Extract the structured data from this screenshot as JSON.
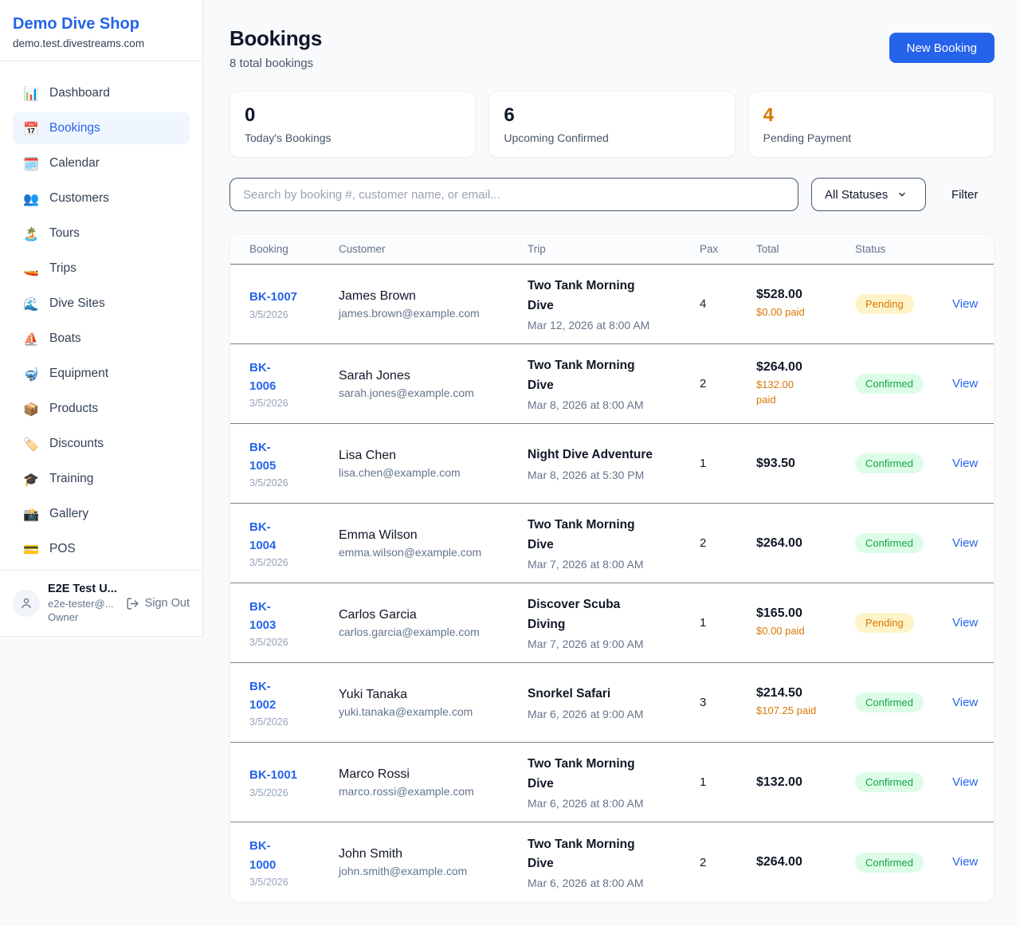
{
  "colors": {
    "accent_blue": "#2563eb",
    "orange": "#d97706",
    "pending_bg": "#fef3c7",
    "pending_text": "#d97706",
    "confirmed_bg": "#dcfce7",
    "confirmed_text": "#16a34a"
  },
  "sidebar": {
    "brand_name": "Demo Dive Shop",
    "brand_domain": "demo.test.divestreams.com",
    "items": [
      {
        "icon": "📊",
        "icon_name": "bar-chart-icon",
        "label": "Dashboard",
        "active": false
      },
      {
        "icon": "📅",
        "icon_name": "calendar-icon",
        "label": "Bookings",
        "active": true
      },
      {
        "icon": "🗓️",
        "icon_name": "spiral-calendar-icon",
        "label": "Calendar",
        "active": false
      },
      {
        "icon": "👥",
        "icon_name": "people-icon",
        "label": "Customers",
        "active": false
      },
      {
        "icon": "🏝️",
        "icon_name": "island-icon",
        "label": "Tours",
        "active": false
      },
      {
        "icon": "🚤",
        "icon_name": "speedboat-icon",
        "label": "Trips",
        "active": false
      },
      {
        "icon": "🌊",
        "icon_name": "wave-icon",
        "label": "Dive Sites",
        "active": false
      },
      {
        "icon": "⛵",
        "icon_name": "sailboat-icon",
        "label": "Boats",
        "active": false
      },
      {
        "icon": "🤿",
        "icon_name": "diving-mask-icon",
        "label": "Equipment",
        "active": false
      },
      {
        "icon": "📦",
        "icon_name": "package-icon",
        "label": "Products",
        "active": false
      },
      {
        "icon": "🏷️",
        "icon_name": "tag-icon",
        "label": "Discounts",
        "active": false
      },
      {
        "icon": "🎓",
        "icon_name": "graduation-cap-icon",
        "label": "Training",
        "active": false
      },
      {
        "icon": "📸",
        "icon_name": "camera-icon",
        "label": "Gallery",
        "active": false
      },
      {
        "icon": "💳",
        "icon_name": "credit-card-icon",
        "label": "POS",
        "active": false
      }
    ],
    "user": {
      "name": "E2E Test U...",
      "email": "e2e-tester@...",
      "role": "Owner",
      "sign_out_label": "Sign Out"
    }
  },
  "header": {
    "title": "Bookings",
    "subtitle": "8 total bookings",
    "new_booking_label": "New Booking"
  },
  "stats": [
    {
      "value": "0",
      "label": "Today's Bookings",
      "accent": "default"
    },
    {
      "value": "6",
      "label": "Upcoming Confirmed",
      "accent": "default"
    },
    {
      "value": "4",
      "label": "Pending Payment",
      "accent": "orange"
    }
  ],
  "filters": {
    "search_placeholder": "Search by booking #, customer name, or email...",
    "status_selected": "All Statuses",
    "filter_label": "Filter"
  },
  "table": {
    "columns": [
      "Booking",
      "Customer",
      "Trip",
      "Pax",
      "Total",
      "Status"
    ],
    "view_label": "View",
    "rows": [
      {
        "number": "BK-1007",
        "date": "3/5/2026",
        "customer": "James Brown",
        "email": "james.brown@example.com",
        "trip": "Two Tank Morning\nDive",
        "trip_date": "Mar 12, 2026 at 8:00 AM",
        "pax": "4",
        "total": "$528.00",
        "paid": "$0.00 paid",
        "status": "Pending"
      },
      {
        "number": "BK-\n1006",
        "date": "3/5/2026",
        "customer": "Sarah Jones",
        "email": "sarah.jones@example.com",
        "trip": "Two Tank Morning\nDive",
        "trip_date": "Mar 8, 2026 at 8:00 AM",
        "pax": "2",
        "total": "$264.00",
        "paid": "$132.00\npaid",
        "status": "Confirmed"
      },
      {
        "number": "BK-\n1005",
        "date": "3/5/2026",
        "customer": "Lisa Chen",
        "email": "lisa.chen@example.com",
        "trip": "Night Dive Adventure",
        "trip_date": "Mar 8, 2026 at 5:30 PM",
        "pax": "1",
        "total": "$93.50",
        "paid": null,
        "status": "Confirmed"
      },
      {
        "number": "BK-\n1004",
        "date": "3/5/2026",
        "customer": "Emma Wilson",
        "email": "emma.wilson@example.com",
        "trip": "Two Tank Morning\nDive",
        "trip_date": "Mar 7, 2026 at 8:00 AM",
        "pax": "2",
        "total": "$264.00",
        "paid": null,
        "status": "Confirmed"
      },
      {
        "number": "BK-\n1003",
        "date": "3/5/2026",
        "customer": "Carlos Garcia",
        "email": "carlos.garcia@example.com",
        "trip": "Discover Scuba\nDiving",
        "trip_date": "Mar 7, 2026 at 9:00 AM",
        "pax": "1",
        "total": "$165.00",
        "paid": "$0.00 paid",
        "status": "Pending"
      },
      {
        "number": "BK-\n1002",
        "date": "3/5/2026",
        "customer": "Yuki Tanaka",
        "email": "yuki.tanaka@example.com",
        "trip": "Snorkel Safari",
        "trip_date": "Mar 6, 2026 at 9:00 AM",
        "pax": "3",
        "total": "$214.50",
        "paid": "$107.25 paid",
        "status": "Confirmed"
      },
      {
        "number": "BK-1001",
        "date": "3/5/2026",
        "customer": "Marco Rossi",
        "email": "marco.rossi@example.com",
        "trip": "Two Tank Morning\nDive",
        "trip_date": "Mar 6, 2026 at 8:00 AM",
        "pax": "1",
        "total": "$132.00",
        "paid": null,
        "status": "Confirmed"
      },
      {
        "number": "BK-\n1000",
        "date": "3/5/2026",
        "customer": "John Smith",
        "email": "john.smith@example.com",
        "trip": "Two Tank Morning\nDive",
        "trip_date": "Mar 6, 2026 at 8:00 AM",
        "pax": "2",
        "total": "$264.00",
        "paid": null,
        "status": "Confirmed"
      }
    ]
  }
}
